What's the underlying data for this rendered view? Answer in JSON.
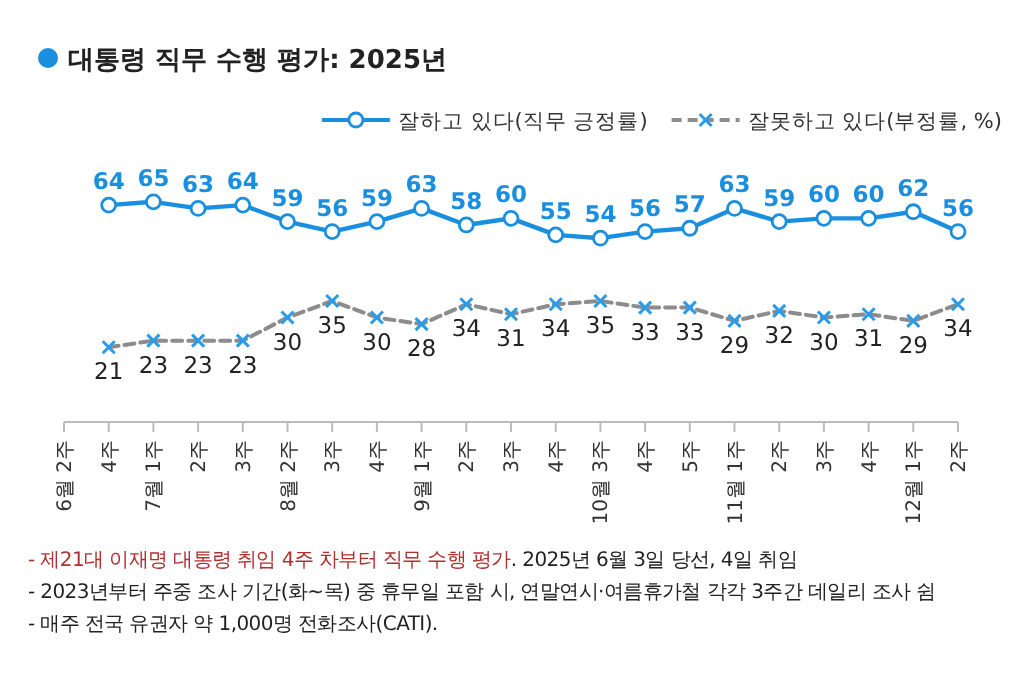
{
  "chart_data": {
    "type": "line",
    "title": "대통령 직무 수행 평가: 2025년",
    "categories": [
      "6월 2주",
      "4주",
      "7월 1주",
      "2주",
      "3주",
      "8월 2주",
      "3주",
      "4주",
      "9월 1주",
      "2주",
      "3주",
      "4주",
      "10월 3주",
      "4주",
      "5주",
      "11월 1주",
      "2주",
      "3주",
      "4주",
      "12월 1주",
      "2주"
    ],
    "series": [
      {
        "name": "잘하고 있다(직무 긍정률)",
        "color": "#1a8fe0",
        "marker": "circle",
        "line_style": "solid",
        "values": [
          null,
          64,
          65,
          63,
          64,
          59,
          56,
          59,
          63,
          58,
          60,
          55,
          54,
          56,
          57,
          63,
          59,
          60,
          60,
          62,
          56
        ]
      },
      {
        "name": "잘못하고 있다(부정률, %)",
        "color": "#8c8c8c",
        "marker": "cross",
        "line_style": "dashed",
        "values": [
          null,
          21,
          23,
          23,
          23,
          30,
          35,
          30,
          28,
          34,
          31,
          34,
          35,
          33,
          33,
          29,
          32,
          30,
          31,
          29,
          34
        ]
      }
    ],
    "data_labels": true,
    "legend": "top right",
    "tick_labels": "x",
    "annotations": [
      "- 제21대 이재명 대통령 취임 4주 차부터 직무 수행 평가",
      ". 2025년 6월 3일 당선, 4일 취임",
      "- 2023년부터 주중 조사 기간(화~목) 중 휴무일 포함 시, 연말연시·여름휴가철 각각 3주간 데일리 조사 쉼",
      "- 매주 전국 유권자 약 1,000명 전화조사(CATI)."
    ]
  }
}
